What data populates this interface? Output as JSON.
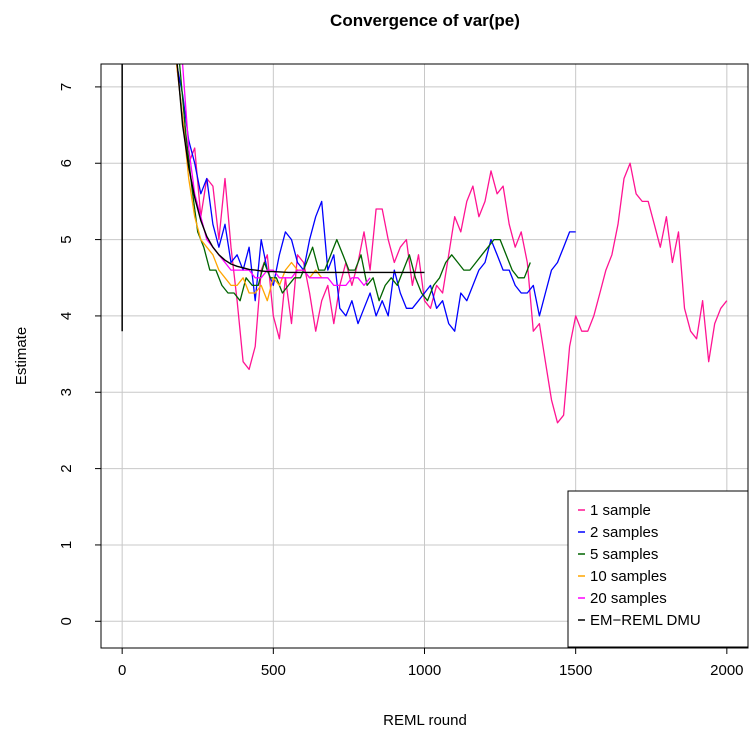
{
  "chart_data": {
    "type": "line",
    "title": "Convergence of var(pe)",
    "xlabel": "REML round",
    "ylabel": "Estimate",
    "xlim": [
      -70,
      2070
    ],
    "ylim": [
      -0.35,
      7.3
    ],
    "xticks": [
      0,
      500,
      1000,
      1500,
      2000
    ],
    "xtick_labels": [
      "0",
      "500",
      "1000",
      "1500",
      "2000"
    ],
    "yticks": [
      0,
      1,
      2,
      3,
      4,
      5,
      6,
      7
    ],
    "ytick_labels": [
      "0",
      "1",
      "2",
      "3",
      "4",
      "5",
      "6",
      "7"
    ],
    "grid": true,
    "legend_position": "bottom-right",
    "initial_spike": {
      "x": 0,
      "y_low": 3.8,
      "y_high": 7.3,
      "color": "#000000"
    },
    "series": [
      {
        "name": "1 sample",
        "color": "#FF1493",
        "x": [
          180,
          200,
          220,
          240,
          260,
          280,
          300,
          320,
          340,
          360,
          380,
          400,
          420,
          440,
          460,
          480,
          500,
          520,
          540,
          560,
          580,
          600,
          620,
          640,
          660,
          680,
          700,
          720,
          740,
          760,
          780,
          800,
          820,
          840,
          860,
          880,
          900,
          920,
          940,
          960,
          980,
          1000,
          1020,
          1040,
          1060,
          1080,
          1100,
          1120,
          1140,
          1160,
          1180,
          1200,
          1220,
          1240,
          1260,
          1280,
          1300,
          1320,
          1340,
          1360,
          1380,
          1400,
          1420,
          1440,
          1460,
          1480,
          1500,
          1520,
          1540,
          1560,
          1580,
          1600,
          1620,
          1640,
          1660,
          1680,
          1700,
          1720,
          1740,
          1760,
          1780,
          1800,
          1820,
          1840,
          1860,
          1880,
          1900,
          1920,
          1940,
          1960,
          1980,
          2000
        ],
        "y": [
          7.3,
          6.6,
          6.0,
          6.2,
          5.3,
          5.8,
          5.7,
          5.0,
          5.8,
          4.9,
          4.2,
          3.4,
          3.3,
          3.6,
          4.6,
          4.8,
          4.0,
          3.7,
          4.5,
          3.9,
          4.8,
          4.7,
          4.3,
          3.8,
          4.2,
          4.4,
          3.9,
          4.4,
          4.7,
          4.4,
          4.7,
          5.1,
          4.6,
          5.4,
          5.4,
          5.0,
          4.7,
          4.9,
          5.0,
          4.4,
          4.8,
          4.2,
          4.1,
          4.4,
          4.3,
          4.8,
          5.3,
          5.1,
          5.5,
          5.7,
          5.3,
          5.5,
          5.9,
          5.6,
          5.7,
          5.2,
          4.9,
          5.1,
          4.7,
          3.8,
          3.9,
          3.4,
          2.9,
          2.6,
          2.7,
          3.6,
          4.0,
          3.8,
          3.8,
          4.0,
          4.3,
          4.6,
          4.8,
          5.2,
          5.8,
          6.0,
          5.6,
          5.5,
          5.5,
          5.2,
          4.9,
          5.3,
          4.7,
          5.1,
          4.1,
          3.8,
          3.7,
          4.2,
          3.4,
          3.9,
          4.1,
          4.2
        ]
      },
      {
        "name": "2 samples",
        "color": "#0000FF",
        "x": [
          180,
          200,
          220,
          240,
          260,
          280,
          300,
          320,
          340,
          360,
          380,
          400,
          420,
          440,
          460,
          480,
          500,
          520,
          540,
          560,
          580,
          600,
          620,
          640,
          660,
          680,
          700,
          720,
          740,
          760,
          780,
          800,
          820,
          840,
          860,
          880,
          900,
          920,
          940,
          960,
          980,
          1000,
          1020,
          1040,
          1060,
          1080,
          1100,
          1120,
          1140,
          1160,
          1180,
          1200,
          1220,
          1240,
          1260,
          1280,
          1300,
          1320,
          1340,
          1360,
          1380,
          1400,
          1420,
          1440,
          1460,
          1480,
          1500
        ],
        "y": [
          7.3,
          6.9,
          6.3,
          6.0,
          5.6,
          5.8,
          5.2,
          4.9,
          5.2,
          4.7,
          4.8,
          4.6,
          4.9,
          4.2,
          5.0,
          4.6,
          4.4,
          4.8,
          5.1,
          5.0,
          4.7,
          4.6,
          5.0,
          5.3,
          5.5,
          4.6,
          4.8,
          4.1,
          4.0,
          4.2,
          3.9,
          4.1,
          4.3,
          4.0,
          4.2,
          4.0,
          4.6,
          4.3,
          4.1,
          4.1,
          4.2,
          4.3,
          4.4,
          4.1,
          4.2,
          3.9,
          3.8,
          4.3,
          4.2,
          4.4,
          4.6,
          4.7,
          5.0,
          4.8,
          4.6,
          4.6,
          4.4,
          4.3,
          4.3,
          4.4,
          4.0,
          4.3,
          4.6,
          4.7,
          4.9,
          5.1,
          5.1
        ]
      },
      {
        "name": "5 samples",
        "color": "#006400",
        "x": [
          190,
          210,
          230,
          250,
          270,
          290,
          310,
          330,
          350,
          370,
          390,
          410,
          430,
          450,
          470,
          490,
          510,
          530,
          550,
          570,
          590,
          610,
          630,
          650,
          670,
          690,
          710,
          730,
          750,
          770,
          790,
          810,
          830,
          850,
          870,
          890,
          910,
          930,
          950,
          970,
          990,
          1010,
          1030,
          1050,
          1070,
          1090,
          1110,
          1130,
          1150,
          1170,
          1190,
          1210,
          1230,
          1250,
          1270,
          1290,
          1310,
          1330,
          1350
        ],
        "y": [
          7.3,
          6.4,
          5.7,
          5.1,
          4.9,
          4.6,
          4.6,
          4.4,
          4.3,
          4.3,
          4.2,
          4.5,
          4.4,
          4.4,
          4.7,
          4.5,
          4.5,
          4.3,
          4.4,
          4.5,
          4.5,
          4.7,
          4.9,
          4.6,
          4.6,
          4.8,
          5.0,
          4.8,
          4.6,
          4.6,
          4.8,
          4.4,
          4.5,
          4.2,
          4.4,
          4.5,
          4.4,
          4.6,
          4.8,
          4.5,
          4.3,
          4.2,
          4.4,
          4.5,
          4.7,
          4.8,
          4.7,
          4.6,
          4.6,
          4.7,
          4.8,
          4.9,
          5.0,
          5.0,
          4.8,
          4.6,
          4.5,
          4.5,
          4.7
        ]
      },
      {
        "name": "10 samples",
        "color": "#FFA500",
        "x": [
          180,
          200,
          220,
          240,
          260,
          280,
          300,
          320,
          340,
          360,
          380,
          400,
          420,
          440,
          460,
          480,
          500,
          520,
          540,
          560,
          580,
          600,
          620,
          640,
          660
        ],
        "y": [
          7.3,
          6.6,
          5.8,
          5.3,
          5.0,
          4.9,
          4.8,
          4.6,
          4.5,
          4.4,
          4.4,
          4.5,
          4.3,
          4.3,
          4.4,
          4.2,
          4.5,
          4.4,
          4.6,
          4.7,
          4.6,
          4.6,
          4.5,
          4.6,
          4.5
        ]
      },
      {
        "name": "20 samples",
        "color": "#FF00FF",
        "x": [
          200,
          220,
          240,
          260,
          280,
          300,
          320,
          340,
          360,
          380,
          400,
          420,
          440,
          460,
          480,
          500,
          520,
          540,
          560,
          580,
          600,
          620,
          640,
          660,
          680,
          700,
          720,
          740,
          760,
          780,
          800,
          820
        ],
        "y": [
          7.3,
          6.2,
          5.6,
          5.3,
          5.0,
          4.9,
          4.8,
          4.7,
          4.6,
          4.6,
          4.6,
          4.6,
          4.5,
          4.5,
          4.6,
          4.6,
          4.5,
          4.5,
          4.5,
          4.6,
          4.6,
          4.5,
          4.5,
          4.5,
          4.5,
          4.4,
          4.4,
          4.4,
          4.5,
          4.5,
          4.4,
          4.5
        ]
      },
      {
        "name": "EM−REML DMU",
        "color": "#000000",
        "x": [
          182,
          200,
          220,
          240,
          260,
          280,
          300,
          320,
          340,
          360,
          380,
          400,
          420,
          440,
          460,
          480,
          500,
          550,
          600,
          700,
          800,
          900,
          1000
        ],
        "y": [
          7.3,
          6.5,
          5.95,
          5.55,
          5.25,
          5.04,
          4.9,
          4.8,
          4.73,
          4.68,
          4.65,
          4.63,
          4.61,
          4.6,
          4.59,
          4.58,
          4.58,
          4.57,
          4.57,
          4.57,
          4.57,
          4.57,
          4.57
        ]
      }
    ]
  }
}
